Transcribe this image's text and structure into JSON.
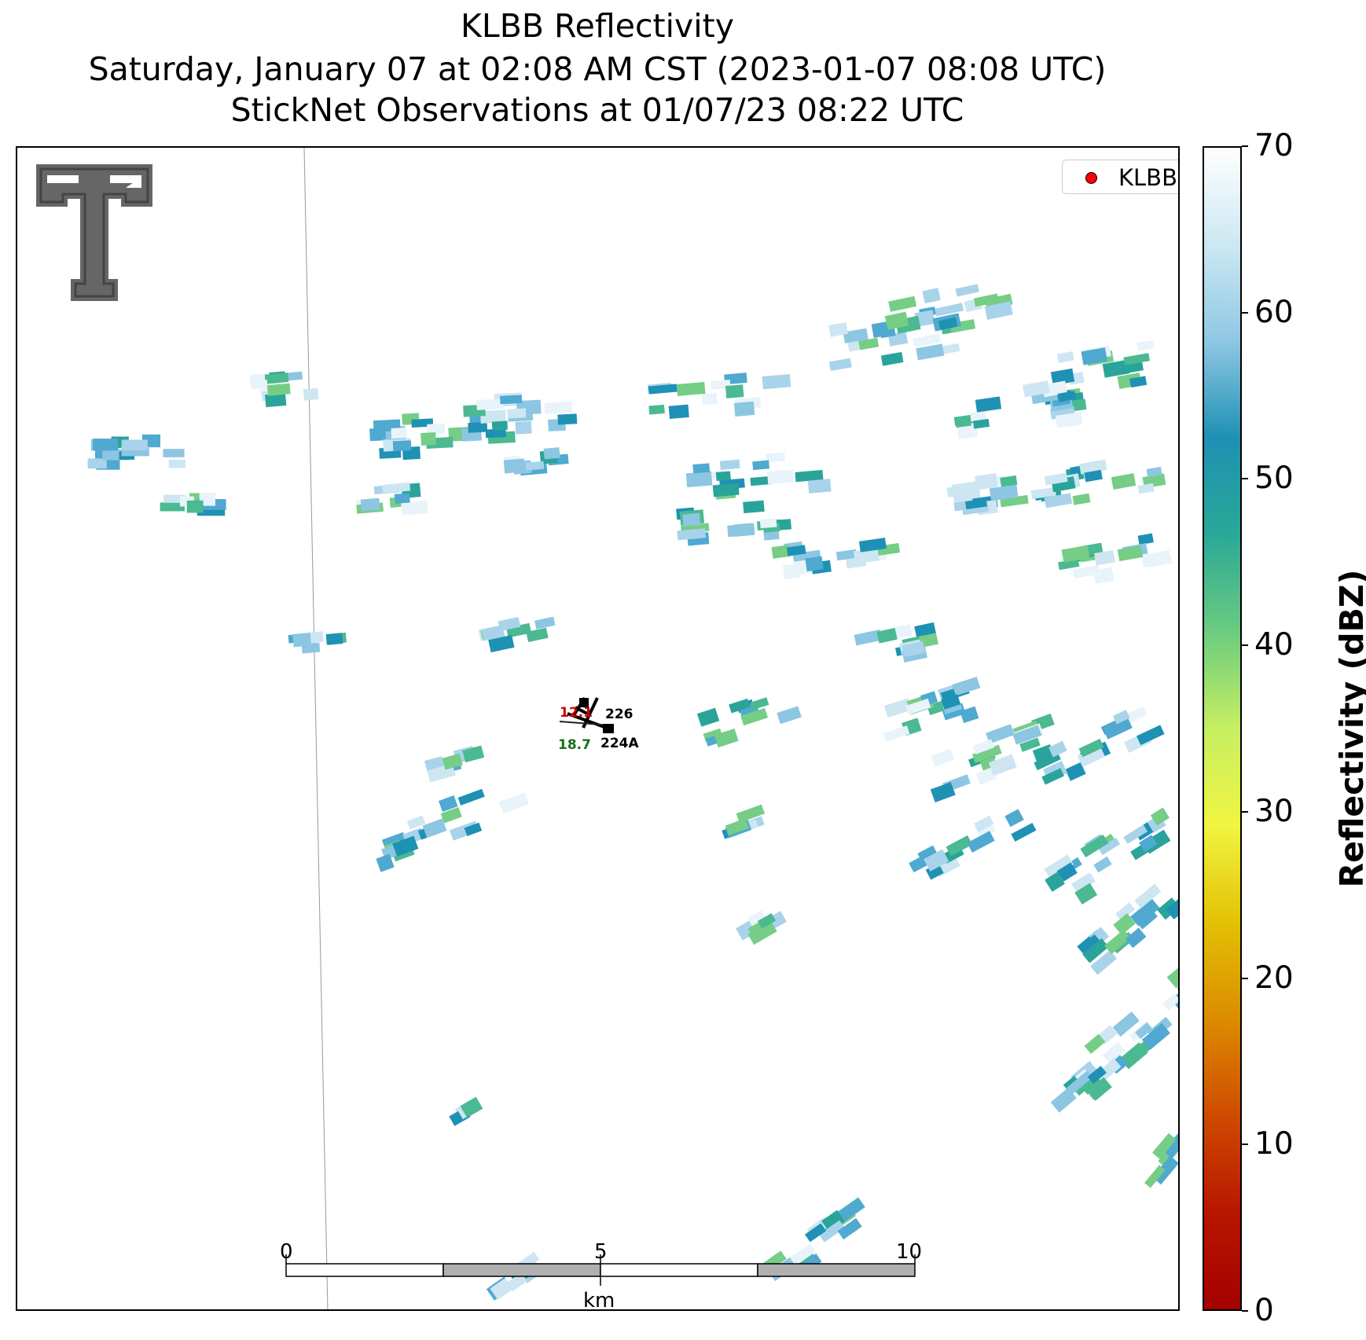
{
  "titles": {
    "line1": "KLBB Reflectivity",
    "line2": "Saturday, January 07 at 02:08 AM CST (2023-01-07 08:08 UTC)",
    "line3": "StickNet Observations at 01/07/23 08:22 UTC"
  },
  "legend": {
    "label": "KLBB",
    "marker_color": "#ff0000"
  },
  "stations": [
    {
      "id": "226",
      "temperature_label": "12.1",
      "temperature_color": "#cc0000"
    },
    {
      "id": "224A",
      "dewpoint_label": "18.7",
      "dewpoint_color": "#1a6e1a"
    }
  ],
  "scale_bar": {
    "ticks": [
      "0",
      "5",
      "10"
    ],
    "unit": "km"
  },
  "colorbar": {
    "title": "Reflectivity (dBZ)",
    "min": 0,
    "max": 70,
    "ticks": [
      "0",
      "10",
      "20",
      "30",
      "40",
      "50",
      "60",
      "70"
    ],
    "colors": [
      "#ffffff",
      "#cde8f3",
      "#8ec7e3",
      "#1e90b4",
      "#2aa898",
      "#6ccc7f",
      "#c6ef62",
      "#f1f541",
      "#e3c104",
      "#dc8c00",
      "#cf4b00",
      "#b81600",
      "#a40000"
    ]
  },
  "logo": {
    "description_icon": "double-t-logo-icon"
  }
}
